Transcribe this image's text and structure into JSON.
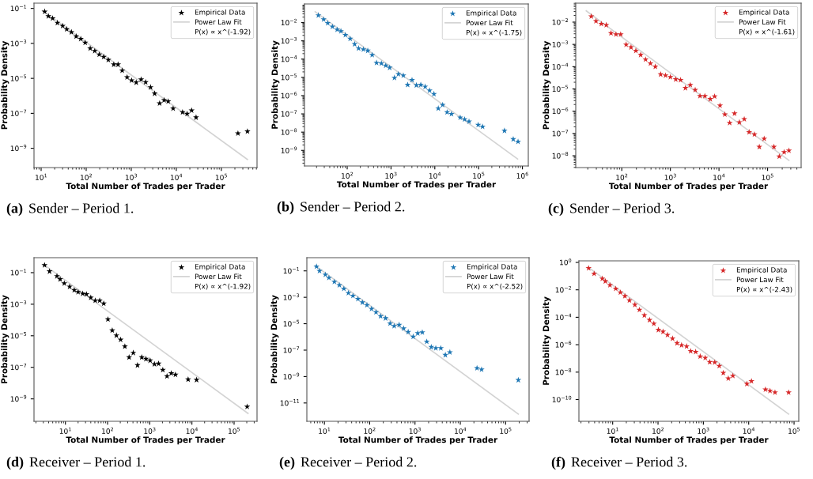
{
  "chart_data": [
    {
      "type": "scatter",
      "xlabel": "Total Number of Trades per Trader",
      "ylabel": "Probability Density",
      "log": "xy",
      "grid": false,
      "legend": "top right",
      "xlim": [
        6.95,
        620000
      ],
      "ylim": [
        7.9e-11,
        0.2
      ],
      "xticks": [
        {
          "value": 10,
          "label": "10$^{1}$"
        },
        {
          "value": 100,
          "label": "10$^{2}$"
        },
        {
          "value": 1000,
          "label": "10$^{3}$"
        },
        {
          "value": 10000,
          "label": "10$^{4}$"
        },
        {
          "value": 100000,
          "label": "10$^{5}$"
        }
      ],
      "yticks": [
        {
          "value": 0.1,
          "label": "10$^{−1}$"
        },
        {
          "value": 0.001,
          "label": "10$^{−3}$"
        },
        {
          "value": 1e-05,
          "label": "10$^{−5}$"
        },
        {
          "value": 1e-07,
          "label": "10$^{−7}$"
        },
        {
          "value": 1e-09,
          "label": "10$^{−9}$"
        }
      ],
      "series": [
        {
          "name": "Empirical Data",
          "marker": "star",
          "color": "#000000",
          "x": [
            12,
            14.5,
            18,
            23,
            30,
            37,
            47,
            60,
            76,
            95,
            123,
            155,
            195,
            245,
            310,
            410,
            510,
            630,
            810,
            1020,
            1290,
            1660,
            2090,
            2690,
            3310,
            4270,
            5370,
            6610,
            8510,
            13800,
            17400,
            21900,
            27500,
            234000,
            380000
          ],
          "values": [
            0.066,
            0.036,
            0.027,
            0.015,
            0.01,
            0.0065,
            0.0044,
            0.0025,
            0.0018,
            0.0011,
            0.00052,
            0.00037,
            0.00023,
            0.00017,
            0.000115,
            6.2e-05,
            6.2e-05,
            2.8e-05,
            1.15e-05,
            7.6e-06,
            5.8e-06,
            8.7e-06,
            6e-06,
            3.1e-06,
            1.35e-06,
            3.7e-07,
            5.6e-07,
            4.8e-07,
            1.9e-07,
            1.15e-07,
            9.3e-08,
            1.45e-07,
            5.8e-08,
            7.1e-09,
            9.3e-09
          ]
        },
        {
          "name": "Power Law Fit",
          "type": "line",
          "color": "#d3d3d3",
          "x": [
            10.7,
            380000
          ],
          "values": [
            0.076,
            2.3e-10
          ]
        }
      ],
      "annotations": [
        "P(x) ∝ x^(-1.92)",
        "(a)",
        "Sender – Period 1."
      ]
    },
    {
      "type": "scatter",
      "xlabel": "Total Number of Trades per Trader",
      "ylabel": "Probability Density",
      "log": "xy",
      "grid": false,
      "legend": "top right",
      "xlim": [
        10.6,
        1360000
      ],
      "ylim": [
        1.4e-10,
        0.105
      ],
      "xticks": [
        {
          "value": 100,
          "label": "10$^{2}$"
        },
        {
          "value": 1000,
          "label": "10$^{3}$"
        },
        {
          "value": 10000,
          "label": "10$^{4}$"
        },
        {
          "value": 100000,
          "label": "10$^{5}$"
        },
        {
          "value": 1000000,
          "label": "10$^{6}$"
        }
      ],
      "yticks": [
        {
          "value": 0.01,
          "label": "10$^{−2}$"
        },
        {
          "value": 0.001,
          "label": "10$^{−3}$"
        },
        {
          "value": 0.0001,
          "label": "10$^{−4}$"
        },
        {
          "value": 1e-05,
          "label": "10$^{−5}$"
        },
        {
          "value": 1e-06,
          "label": "10$^{−6}$"
        },
        {
          "value": 1e-07,
          "label": "10$^{−7}$"
        },
        {
          "value": 1e-08,
          "label": "10$^{−8}$"
        },
        {
          "value": 1e-09,
          "label": "10$^{−9}$"
        }
      ],
      "series": [
        {
          "name": "Empirical Data",
          "marker": "star",
          "color": "#1f77b4",
          "x": [
            22,
            29,
            36,
            46,
            59,
            72,
            91,
            117,
            148,
            182,
            234,
            295,
            372,
            468,
            603,
            759,
            933,
            1200,
            1480,
            1910,
            2400,
            3020,
            3800,
            4790,
            6030,
            7590,
            9550,
            12000,
            15100,
            19100,
            24000,
            38000,
            47900,
            60300,
            97700,
            123000,
            389000,
            617000,
            794000
          ],
          "values": [
            0.025,
            0.015,
            0.0093,
            0.006,
            0.0041,
            0.0034,
            0.0021,
            0.0013,
            0.00066,
            0.00039,
            0.00034,
            0.00029,
            0.00017,
            6.3e-05,
            5.8e-05,
            4.4e-05,
            3.4e-05,
            9.5e-06,
            1.5e-05,
            1.26e-05,
            3.9e-06,
            7.1e-06,
            3.7e-06,
            3.9e-06,
            3.1e-06,
            1.9e-06,
            1.23e-06,
            2e-07,
            3.1e-07,
            1.23e-07,
            9.8e-08,
            6.3e-08,
            5e-08,
            3.8e-08,
            2.5e-08,
            2e-08,
            1.2e-08,
            4.1e-09,
            3e-09
          ]
        },
        {
          "name": "Power Law Fit",
          "type": "line",
          "color": "#d3d3d3",
          "x": [
            18.6,
            776000
          ],
          "values": [
            0.039,
            3.4e-10
          ]
        }
      ],
      "annotations": [
        "P(x) ∝ x^(-1.75)",
        "(b)",
        "Sender – Period 2."
      ]
    },
    {
      "type": "scatter",
      "xlabel": "Total Number of Trades per Trader",
      "ylabel": "Probability Density",
      "log": "xy",
      "grid": false,
      "legend": "top right",
      "xlim": [
        11.3,
        490000
      ],
      "ylim": [
        2.95e-09,
        0.071
      ],
      "xticks": [
        {
          "value": 100,
          "label": "10$^{2}$"
        },
        {
          "value": 1000,
          "label": "10$^{3}$"
        },
        {
          "value": 10000,
          "label": "10$^{4}$"
        },
        {
          "value": 100000,
          "label": "10$^{5}$"
        }
      ],
      "yticks": [
        {
          "value": 0.01,
          "label": "10$^{−2}$"
        },
        {
          "value": 0.001,
          "label": "10$^{−3}$"
        },
        {
          "value": 0.0001,
          "label": "10$^{−4}$"
        },
        {
          "value": 1e-05,
          "label": "10$^{−5}$"
        },
        {
          "value": 1e-06,
          "label": "10$^{−6}$"
        },
        {
          "value": 1e-07,
          "label": "10$^{−7}$"
        },
        {
          "value": 1e-08,
          "label": "10$^{−8}$"
        }
      ],
      "series": [
        {
          "name": "Empirical Data",
          "marker": "star",
          "color": "#d62728",
          "x": [
            23.6,
            29.5,
            38,
            48,
            60,
            76,
            95,
            123,
            155,
            195,
            245,
            309,
            389,
            490,
            631,
            794,
            1000,
            1290,
            1620,
            2040,
            2570,
            3240,
            4070,
            5130,
            6610,
            8130,
            10500,
            13200,
            16600,
            20900,
            26300,
            33100,
            41700,
            53700,
            67600,
            85100,
            135000,
            174000,
            219000,
            275000
          ],
          "values": [
            0.018,
            0.011,
            0.0083,
            0.0074,
            0.0032,
            0.0028,
            0.0028,
            0.00098,
            0.00074,
            0.00052,
            0.00034,
            0.00021,
            0.00014,
            0.0001,
            4.5e-05,
            4e-05,
            3.4e-05,
            2.7e-05,
            2.5e-05,
            1.1e-05,
            1.5e-05,
            9.1e-06,
            4.8e-06,
            4.8e-06,
            3.5e-06,
            4.6e-06,
            1.8e-06,
            7.2e-07,
            3e-07,
            7.9e-07,
            3.2e-07,
            4.4e-07,
            1.15e-07,
            9.1e-08,
            2.5e-08,
            5.8e-08,
            2.5e-08,
            9.3e-09,
            1.45e-08,
            1.7e-08
          ]
        },
        {
          "name": "Power Law Fit",
          "type": "line",
          "color": "#d3d3d3",
          "x": [
            18.6,
            275000
          ],
          "values": [
            0.032,
            6.2e-09
          ]
        }
      ],
      "annotations": [
        "P(x) ∝ x^(-1.61)",
        "(c)",
        "Sender – Period 3."
      ]
    },
    {
      "type": "scatter",
      "xlabel": "Total Number of Trades per Trader",
      "ylabel": "Probability Density",
      "log": "xy",
      "grid": false,
      "legend": "top right",
      "xlim": [
        1.8,
        350000
      ],
      "ylim": [
        3.8e-11,
        0.89
      ],
      "xticks": [
        {
          "value": 10,
          "label": "10$^{1}$"
        },
        {
          "value": 100,
          "label": "10$^{2}$"
        },
        {
          "value": 1000,
          "label": "10$^{3}$"
        },
        {
          "value": 10000,
          "label": "10$^{4}$"
        },
        {
          "value": 100000,
          "label": "10$^{5}$"
        }
      ],
      "yticks": [
        {
          "value": 0.1,
          "label": "10$^{−1}$"
        },
        {
          "value": 0.001,
          "label": "10$^{−3}$"
        },
        {
          "value": 1e-05,
          "label": "10$^{−5}$"
        },
        {
          "value": 1e-07,
          "label": "10$^{−7}$"
        },
        {
          "value": 1e-09,
          "label": "10$^{−9}$"
        }
      ],
      "series": [
        {
          "name": "Empirical Data",
          "marker": "star",
          "color": "#000000",
          "x": [
            3.2,
            4.2,
            6.3,
            7.5,
            9.4,
            12.6,
            16.2,
            20,
            25.7,
            31.6,
            40,
            51,
            65,
            81,
            102,
            129,
            162,
            204,
            257,
            324,
            407,
            513,
            646,
            813,
            1020,
            1290,
            1620,
            2040,
            2570,
            3240,
            4070,
            8130,
            12900,
            204000
          ],
          "values": [
            0.3,
            0.12,
            0.06,
            0.038,
            0.021,
            0.013,
            0.0079,
            0.0059,
            0.0047,
            0.0043,
            0.0026,
            0.0017,
            0.0017,
            0.0011,
            0.00011,
            2.2e-05,
            1.05e-05,
            5.6e-06,
            2.1e-06,
            4.3e-07,
            8.3e-07,
            1.35e-07,
            4.3e-07,
            3.4e-07,
            2.7e-07,
            1.6e-07,
            1.7e-07,
            6.8e-08,
            2.7e-08,
            4.2e-08,
            3.4e-08,
            1.7e-08,
            1.6e-08,
            3.2e-10
          ]
        },
        {
          "name": "Power Law Fit",
          "type": "line",
          "color": "#d3d3d3",
          "x": [
            3.1,
            214000
          ],
          "values": [
            0.32,
            1.2e-10
          ]
        }
      ],
      "annotations": [
        "P(x) ∝ x^(-1.92)",
        "(d)",
        "Receiver – Period 1."
      ]
    },
    {
      "type": "scatter",
      "xlabel": "Total Number of Trades per Trader",
      "ylabel": "Probability Density",
      "log": "xy",
      "grid": false,
      "legend": "top right",
      "xlim": [
        4.1,
        330000
      ],
      "ylim": [
        4.1e-13,
        1.0
      ],
      "xticks": [
        {
          "value": 10,
          "label": "10$^{1}$"
        },
        {
          "value": 100,
          "label": "10$^{2}$"
        },
        {
          "value": 1000,
          "label": "10$^{3}$"
        },
        {
          "value": 10000,
          "label": "10$^{4}$"
        },
        {
          "value": 100000,
          "label": "10$^{5}$"
        }
      ],
      "yticks": [
        {
          "value": 0.1,
          "label": "10$^{−1}$"
        },
        {
          "value": 0.001,
          "label": "10$^{−3}$"
        },
        {
          "value": 1e-05,
          "label": "10$^{−5}$"
        },
        {
          "value": 1e-07,
          "label": "10$^{−7}$"
        },
        {
          "value": 1e-09,
          "label": "10$^{−9}$"
        },
        {
          "value": 1e-11,
          "label": "10$^{−11}$"
        }
      ],
      "series": [
        {
          "name": "Empirical Data",
          "marker": "star",
          "color": "#1f77b4",
          "x": [
            6.7,
            7.8,
            10.5,
            12.6,
            16.6,
            21.4,
            26.9,
            33.9,
            42.7,
            55,
            69,
            87,
            110,
            138,
            174,
            224,
            282,
            347,
            447,
            562,
            708,
            912,
            1150,
            1450,
            1820,
            2290,
            2880,
            3720,
            4680,
            5890,
            23400,
            29500,
            191000
          ],
          "values": [
            0.21,
            0.1,
            0.052,
            0.03,
            0.015,
            0.0083,
            0.0045,
            0.0021,
            0.0013,
            0.00074,
            0.00041,
            0.00026,
            0.000135,
            7.4e-05,
            3.7e-05,
            2.6e-05,
            1.05e-05,
            6.6e-06,
            8.3e-06,
            4.4e-06,
            2.4e-06,
            1.05e-06,
            1.9e-06,
            2.2e-06,
            4.4e-07,
            1.7e-07,
            1.4e-07,
            1.4e-07,
            4.3e-08,
            6.9e-08,
            4.3e-09,
            3.4e-09,
            5.4e-10
          ]
        },
        {
          "name": "Power Law Fit",
          "type": "line",
          "color": "#d3d3d3",
          "x": [
            6.3,
            191000
          ],
          "values": [
            0.25,
            1.45e-12
          ]
        }
      ],
      "annotations": [
        "P(x) ∝ x^(-2.52)",
        "(e)",
        "Receiver – Period 2."
      ]
    },
    {
      "type": "scatter",
      "xlabel": "Total Number of Trades per Trader",
      "ylabel": "Probability Density",
      "log": "xy",
      "grid": false,
      "legend": "top right",
      "xlim": [
        1.8,
        127000
      ],
      "ylim": [
        2.6e-12,
        1.3
      ],
      "xticks": [
        {
          "value": 10,
          "label": "10$^{1}$"
        },
        {
          "value": 100,
          "label": "10$^{2}$"
        },
        {
          "value": 1000,
          "label": "10$^{3}$"
        },
        {
          "value": 10000,
          "label": "10$^{4}$"
        },
        {
          "value": 100000,
          "label": "10$^{5}$"
        }
      ],
      "yticks": [
        {
          "value": 1,
          "label": "10$^{0}$"
        },
        {
          "value": 0.01,
          "label": "10$^{−2}$"
        },
        {
          "value": 0.0001,
          "label": "10$^{−4}$"
        },
        {
          "value": 1e-06,
          "label": "10$^{−6}$"
        },
        {
          "value": 1e-08,
          "label": "10$^{−8}$"
        },
        {
          "value": 1e-10,
          "label": "10$^{−10}$"
        }
      ],
      "series": [
        {
          "name": "Empirical Data",
          "marker": "star",
          "color": "#d62728",
          "x": [
            2.95,
            3.9,
            5.9,
            6.9,
            8.7,
            11.7,
            14.8,
            18.6,
            23.4,
            30.9,
            38.9,
            50,
            65,
            81,
            102,
            129,
            162,
            209,
            263,
            331,
            427,
            525,
            676,
            851,
            1100,
            1380,
            1780,
            2240,
            2750,
            3550,
            4470,
            9120,
            11500,
            23400,
            29500,
            38000,
            75900
          ],
          "values": [
            0.38,
            0.15,
            0.065,
            0.042,
            0.022,
            0.012,
            0.0065,
            0.0035,
            0.0017,
            0.00081,
            0.00035,
            0.00014,
            6.3e-05,
            3.4e-05,
            1.2e-05,
            8.9e-06,
            5.2e-06,
            2.8e-06,
            1.3e-06,
            9.3e-07,
            7.6e-07,
            3.4e-07,
            3e-07,
            1.4e-07,
            1.1e-07,
            5.4e-08,
            5.1e-08,
            2.8e-08,
            8.7e-09,
            3.5e-09,
            5.4e-09,
            1.4e-09,
            2.2e-09,
            5.4e-10,
            4.3e-10,
            3.3e-10,
            3.3e-10
          ]
        },
        {
          "name": "Power Law Fit",
          "type": "line",
          "color": "#d3d3d3",
          "x": [
            2.9,
            75900
          ],
          "values": [
            0.44,
            8.7e-12
          ]
        }
      ],
      "annotations": [
        "P(x) ∝ x^(-2.43)",
        "(f)",
        "Receiver – Period 3."
      ]
    }
  ]
}
